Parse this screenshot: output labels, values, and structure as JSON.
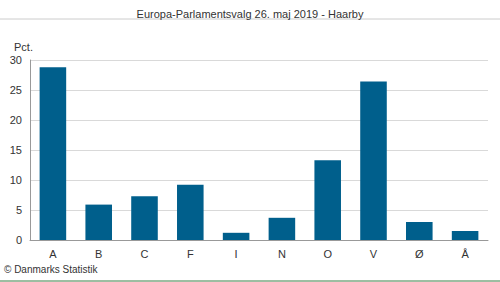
{
  "chart_data": {
    "type": "bar",
    "title": "Europa-Parlamentsvalg 26. maj 2019 - Haarby",
    "ylabel": "Pct.",
    "annotation": "© Danmarks Statistik",
    "categories": [
      "A",
      "B",
      "C",
      "F",
      "I",
      "N",
      "O",
      "V",
      "Ø",
      "Å"
    ],
    "values": [
      28.8,
      5.9,
      7.3,
      9.2,
      1.2,
      3.7,
      13.3,
      26.4,
      3.0,
      1.5
    ],
    "color": "#005f8c",
    "ylim": [
      0,
      30
    ],
    "yticks": [
      0,
      5,
      10,
      15,
      20,
      25,
      30
    ],
    "grid": true
  }
}
